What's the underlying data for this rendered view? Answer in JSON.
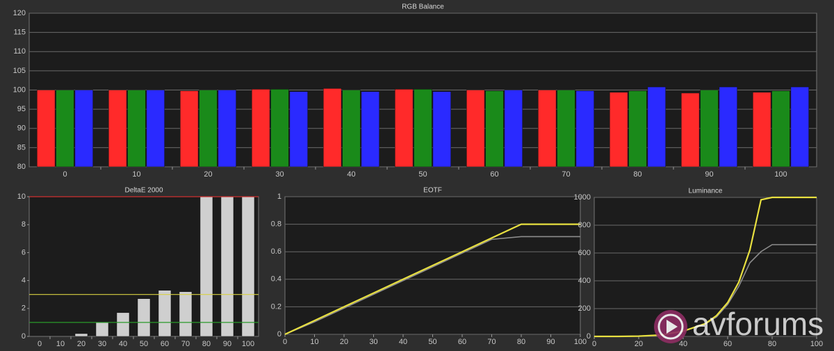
{
  "chart_data": [
    {
      "type": "bar",
      "title": "RGB Balance",
      "categories": [
        "0",
        "10",
        "20",
        "30",
        "40",
        "50",
        "60",
        "70",
        "80",
        "90",
        "100"
      ],
      "series": [
        {
          "color": "#ff2a2a",
          "values": [
            100,
            100,
            99.8,
            100.2,
            100.4,
            100.2,
            100,
            100,
            99.4,
            99.2,
            99.4
          ]
        },
        {
          "color": "#1a8a1a",
          "values": [
            100,
            100,
            100,
            100.2,
            100,
            100.2,
            99.8,
            100,
            99.8,
            100,
            99.8
          ]
        },
        {
          "color": "#2a2aff",
          "values": [
            100,
            100,
            100,
            99.6,
            99.6,
            99.6,
            100,
            99.8,
            100.8,
            100.8,
            100.8
          ]
        }
      ],
      "ylim": [
        80,
        120
      ],
      "yticks": [
        80,
        85,
        90,
        95,
        100,
        105,
        110,
        115,
        120
      ],
      "grid": true
    },
    {
      "type": "bar",
      "title": "DeltaE 2000",
      "categories": [
        "0",
        "10",
        "20",
        "30",
        "40",
        "50",
        "60",
        "70",
        "80",
        "90",
        "100"
      ],
      "values": [
        0,
        0,
        0.2,
        1.0,
        1.7,
        2.7,
        3.3,
        3.2,
        10,
        10,
        10
      ],
      "color": "#cfcfcf",
      "ylim": [
        0,
        10
      ],
      "yticks": [
        0,
        2,
        4,
        6,
        8,
        10
      ],
      "grid": false,
      "reference_lines": [
        {
          "value": 10,
          "color": "#d03030"
        },
        {
          "value": 3,
          "color": "#d8d040"
        },
        {
          "value": 1,
          "color": "#2a9a2a"
        }
      ]
    },
    {
      "type": "line",
      "title": "EOTF",
      "x": [
        0,
        10,
        20,
        30,
        40,
        50,
        60,
        70,
        80,
        90,
        100
      ],
      "series": [
        {
          "color": "#8c8c8c",
          "values": [
            0,
            0.09,
            0.19,
            0.29,
            0.39,
            0.49,
            0.59,
            0.69,
            0.71,
            0.71,
            0.71
          ]
        },
        {
          "color": "#e8e040",
          "values": [
            0,
            0.1,
            0.2,
            0.3,
            0.4,
            0.5,
            0.6,
            0.7,
            0.8,
            0.8,
            0.8
          ]
        }
      ],
      "xlim": [
        0,
        100
      ],
      "xticks": [
        0,
        10,
        20,
        30,
        40,
        50,
        60,
        70,
        80,
        90,
        100
      ],
      "ylim": [
        0,
        1
      ],
      "yticks": [
        0,
        0.2,
        0.4,
        0.6,
        0.8,
        1
      ],
      "grid": true
    },
    {
      "type": "line",
      "title": "Luminance",
      "x": [
        0,
        10,
        20,
        30,
        40,
        50,
        55,
        60,
        65,
        70,
        75,
        80,
        90,
        100
      ],
      "series": [
        {
          "color": "#8c8c8c",
          "values": [
            0,
            0,
            2,
            10,
            38,
            90,
            140,
            230,
            360,
            530,
            610,
            660,
            660,
            660
          ]
        },
        {
          "color": "#e8e040",
          "values": [
            0,
            0,
            2,
            10,
            38,
            92,
            150,
            243,
            390,
            622,
            983,
            1000,
            1000,
            1000
          ]
        }
      ],
      "xlim": [
        0,
        100
      ],
      "xticks": [
        0,
        20,
        40,
        60,
        80,
        100
      ],
      "ylim": [
        0,
        1000
      ],
      "yticks": [
        0,
        200,
        400,
        600,
        800,
        1000
      ],
      "grid": true
    }
  ],
  "watermark": "avforums"
}
